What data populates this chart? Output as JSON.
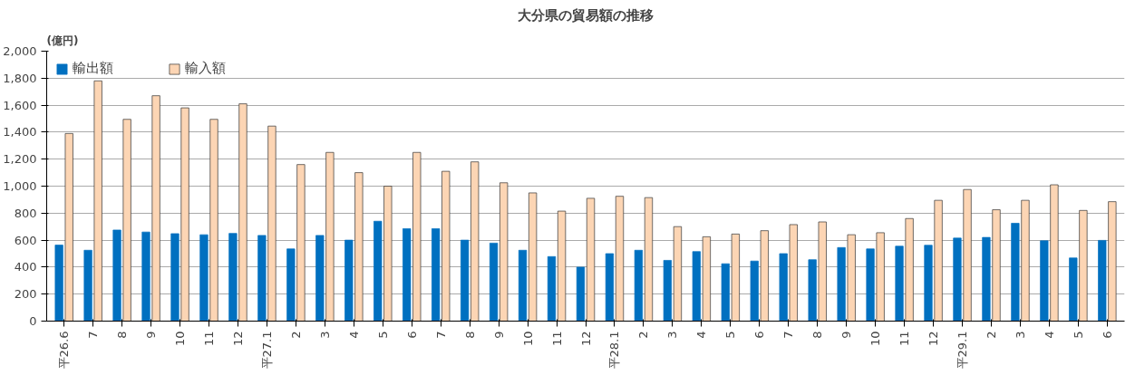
{
  "chart_data": {
    "type": "bar",
    "title": "大分県の貿易額の推移",
    "ylabel": "(億円)",
    "categories": [
      "平26.6",
      "7",
      "8",
      "9",
      "10",
      "11",
      "12",
      "平27.1",
      "2",
      "3",
      "4",
      "5",
      "6",
      "7",
      "8",
      "9",
      "10",
      "11",
      "12",
      "平28.1",
      "2",
      "3",
      "4",
      "5",
      "6",
      "7",
      "8",
      "9",
      "10",
      "11",
      "12",
      "平29.1",
      "2",
      "3",
      "4",
      "5",
      "6"
    ],
    "series": [
      {
        "name": "輸出額",
        "color": "#0070c0",
        "values": [
          563,
          525,
          675,
          660,
          648,
          640,
          650,
          635,
          535,
          635,
          600,
          740,
          685,
          685,
          600,
          578,
          525,
          478,
          400,
          500,
          525,
          450,
          515,
          425,
          445,
          500,
          455,
          545,
          535,
          555,
          562,
          615,
          620,
          725,
          595,
          468,
          598
        ]
      },
      {
        "name": "輸入額",
        "color": "#fcd5b4",
        "values": [
          1390,
          1780,
          1495,
          1670,
          1580,
          1495,
          1610,
          1445,
          1160,
          1250,
          1100,
          1000,
          1250,
          1110,
          1180,
          1025,
          950,
          815,
          910,
          925,
          915,
          700,
          625,
          645,
          670,
          715,
          735,
          640,
          655,
          760,
          895,
          975,
          825,
          895,
          1010,
          820,
          885
        ]
      }
    ],
    "ylim": [
      0,
      2000
    ],
    "yticks": [
      0,
      200,
      400,
      600,
      800,
      {
        "value": 1000,
        "label": "1,000"
      },
      {
        "value": 1200,
        "label": "1,200"
      },
      {
        "value": 1400,
        "label": "1,400"
      },
      {
        "value": 1600,
        "label": "1,600"
      },
      {
        "value": 1800,
        "label": "1,800"
      },
      {
        "value": 2000,
        "label": "2,000"
      }
    ],
    "grid": "y",
    "legend": "top left"
  }
}
